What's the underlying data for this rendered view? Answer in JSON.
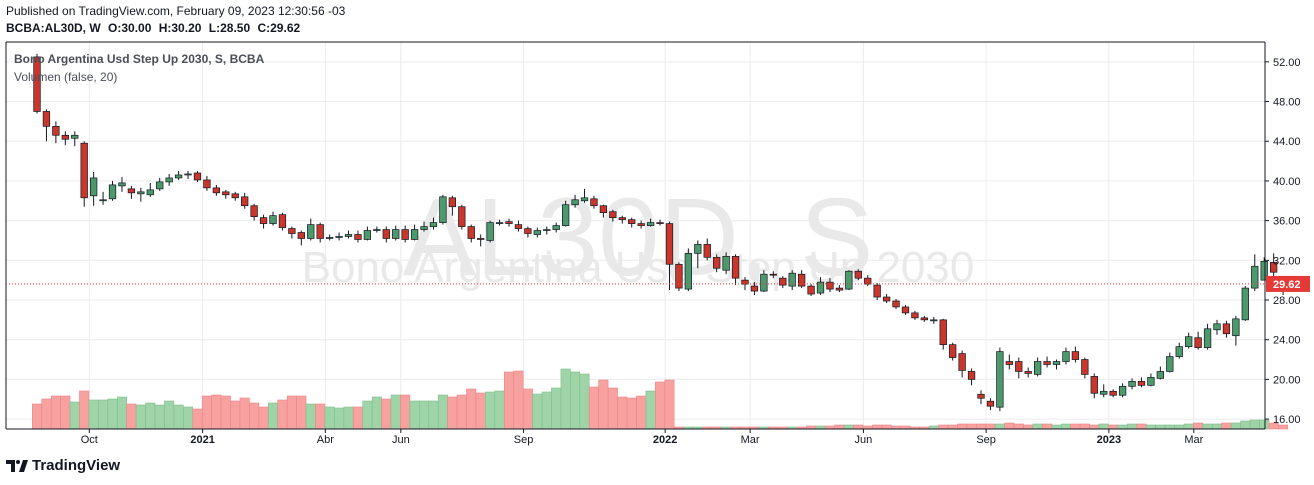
{
  "header": {
    "published": "Published on TradingView.com, February 09, 2023 12:30:56 -03",
    "symbol_interval": "BCBA:AL30D, W",
    "ohlc": {
      "o": "O:30.00",
      "h": "H:30.20",
      "l": "L:28.50",
      "c": "C:29.62"
    }
  },
  "legend": {
    "series": "Bono Argentina Usd Step Up 2030, S, BCBA",
    "indicator": "Volumen (false, 20)"
  },
  "watermark": {
    "ticker": "AL30D, S",
    "name": "Bono Argentina Usd Step Up 2030"
  },
  "footer": {
    "brand": "TradingView",
    "logo_icon": "tradingview-logo-icon"
  },
  "colors": {
    "up": "#26a69a",
    "up_body": "#4c9a6c",
    "down": "#c9372c",
    "vol_up": "#9fd3a8",
    "vol_down": "#f7a1a0",
    "last_price": "#e53935"
  },
  "chart_data": {
    "type": "candlestick",
    "price_axis": {
      "ticks": [
        "52.00",
        "48.00",
        "44.00",
        "40.00",
        "36.00",
        "32.00",
        "28.00",
        "24.00",
        "20.00",
        "16.00"
      ],
      "ylim": [
        15.0,
        54.0
      ]
    },
    "time_axis": {
      "labels": [
        "Oct",
        "2021",
        "Abr",
        "Jun",
        "Sep",
        "2022",
        "Mar",
        "Jun",
        "Sep",
        "2023",
        "Mar"
      ]
    },
    "last_price": {
      "value": 29.62,
      "label": "29.62"
    },
    "grid": true,
    "candles": [
      [
        52.5,
        47.0,
        52.8,
        46.8,
        25
      ],
      [
        47.0,
        45.5,
        47.2,
        44.0,
        30
      ],
      [
        45.5,
        44.6,
        46.0,
        43.8,
        33
      ],
      [
        44.6,
        44.2,
        45.0,
        43.6,
        33
      ],
      [
        44.3,
        44.6,
        45.0,
        43.5,
        27
      ],
      [
        43.8,
        38.3,
        44.0,
        37.4,
        38
      ],
      [
        38.5,
        40.3,
        40.9,
        37.5,
        29
      ],
      [
        38.0,
        38.1,
        38.9,
        37.6,
        29
      ],
      [
        38.2,
        39.6,
        40.0,
        38.0,
        30
      ],
      [
        39.5,
        39.8,
        40.4,
        38.9,
        32
      ],
      [
        39.2,
        38.8,
        39.5,
        38.2,
        25
      ],
      [
        38.7,
        38.9,
        39.3,
        37.9,
        24
      ],
      [
        38.6,
        39.1,
        39.8,
        38.4,
        26
      ],
      [
        39.2,
        39.9,
        40.3,
        39.0,
        24
      ],
      [
        39.9,
        40.3,
        40.7,
        39.5,
        28
      ],
      [
        40.3,
        40.6,
        41.0,
        40.1,
        24
      ],
      [
        40.6,
        40.7,
        41.0,
        40.2,
        22
      ],
      [
        40.8,
        40.1,
        41.0,
        39.9,
        20
      ],
      [
        40.1,
        39.3,
        40.5,
        39.0,
        33
      ],
      [
        39.3,
        38.8,
        39.6,
        38.5,
        34
      ],
      [
        38.9,
        38.6,
        39.1,
        38.2,
        33
      ],
      [
        38.7,
        38.3,
        38.9,
        38.0,
        28
      ],
      [
        38.4,
        37.5,
        38.8,
        37.2,
        31
      ],
      [
        37.5,
        36.4,
        37.7,
        36.0,
        26
      ],
      [
        36.3,
        35.7,
        36.6,
        35.2,
        22
      ],
      [
        35.7,
        36.5,
        36.9,
        35.5,
        26
      ],
      [
        36.6,
        35.3,
        36.8,
        35.0,
        29
      ],
      [
        35.2,
        34.7,
        35.4,
        34.2,
        33
      ],
      [
        34.8,
        34.2,
        35.0,
        33.5,
        33
      ],
      [
        34.2,
        35.6,
        36.2,
        34.0,
        25
      ],
      [
        35.6,
        34.2,
        35.8,
        33.8,
        25
      ],
      [
        34.3,
        34.3,
        34.6,
        34.0,
        22
      ],
      [
        34.3,
        34.4,
        34.8,
        34.0,
        21
      ],
      [
        34.4,
        34.6,
        35.0,
        34.2,
        22
      ],
      [
        34.6,
        34.1,
        35.0,
        33.8,
        22
      ],
      [
        34.1,
        35.0,
        35.4,
        34.0,
        28
      ],
      [
        35.0,
        35.1,
        35.4,
        34.8,
        32
      ],
      [
        35.1,
        34.2,
        35.4,
        33.8,
        30
      ],
      [
        34.2,
        35.1,
        35.5,
        34.0,
        34
      ],
      [
        35.1,
        34.1,
        35.5,
        33.8,
        34
      ],
      [
        34.1,
        35.1,
        35.6,
        34.0,
        28
      ],
      [
        35.1,
        35.4,
        35.9,
        34.9,
        28
      ],
      [
        35.4,
        35.8,
        36.3,
        35.1,
        28
      ],
      [
        35.8,
        38.4,
        38.6,
        35.6,
        34
      ],
      [
        38.3,
        37.4,
        38.5,
        36.5,
        32
      ],
      [
        37.4,
        35.4,
        37.6,
        35.1,
        34
      ],
      [
        35.4,
        34.2,
        35.6,
        33.8,
        40
      ],
      [
        34.2,
        34.1,
        34.6,
        33.4,
        36
      ],
      [
        34.0,
        35.8,
        36.0,
        33.8,
        37
      ],
      [
        35.8,
        35.8,
        36.1,
        35.5,
        38
      ],
      [
        35.9,
        35.7,
        36.2,
        35.4,
        57
      ],
      [
        35.6,
        35.2,
        36.0,
        34.9,
        58
      ],
      [
        35.2,
        34.7,
        35.4,
        34.3,
        40
      ],
      [
        34.6,
        35.0,
        35.3,
        34.3,
        35
      ],
      [
        35.0,
        35.1,
        35.4,
        34.6,
        37
      ],
      [
        35.1,
        35.5,
        35.8,
        34.8,
        41
      ],
      [
        35.5,
        37.6,
        38.0,
        35.4,
        60
      ],
      [
        37.6,
        38.1,
        38.6,
        37.3,
        57
      ],
      [
        38.0,
        38.3,
        39.2,
        37.8,
        55
      ],
      [
        38.2,
        37.5,
        38.5,
        37.2,
        42
      ],
      [
        37.5,
        36.8,
        37.6,
        36.3,
        49
      ],
      [
        36.9,
        36.3,
        37.1,
        35.9,
        41
      ],
      [
        36.3,
        36.1,
        36.5,
        35.7,
        32
      ],
      [
        36.1,
        35.7,
        36.3,
        35.3,
        31
      ],
      [
        35.7,
        35.5,
        36.0,
        35.2,
        33
      ],
      [
        35.5,
        35.8,
        36.2,
        35.4,
        38
      ],
      [
        35.8,
        35.7,
        36.1,
        35.5,
        47
      ],
      [
        35.7,
        31.6,
        35.9,
        29.0,
        49
      ],
      [
        31.6,
        29.2,
        31.8,
        28.9,
        2
      ],
      [
        29.1,
        32.7,
        33.2,
        28.9,
        2
      ],
      [
        32.7,
        33.6,
        34.0,
        31.2,
        2
      ],
      [
        33.6,
        32.3,
        34.2,
        32.0,
        2
      ],
      [
        32.3,
        31.2,
        32.6,
        30.8,
        2
      ],
      [
        31.0,
        32.4,
        32.8,
        30.6,
        2
      ],
      [
        32.4,
        30.2,
        32.6,
        29.5,
        2
      ],
      [
        30.0,
        29.6,
        30.3,
        29.0,
        2
      ],
      [
        29.4,
        28.9,
        29.8,
        28.5,
        2
      ],
      [
        28.9,
        30.6,
        31.0,
        28.8,
        2
      ],
      [
        30.6,
        30.5,
        30.9,
        30.2,
        2
      ],
      [
        30.2,
        29.5,
        30.4,
        29.2,
        2
      ],
      [
        29.4,
        30.7,
        31.0,
        29.0,
        2
      ],
      [
        30.6,
        29.4,
        31.0,
        29.2,
        2
      ],
      [
        29.4,
        28.6,
        29.6,
        28.4,
        3
      ],
      [
        28.7,
        29.8,
        30.3,
        28.5,
        3
      ],
      [
        29.8,
        29.1,
        30.2,
        28.8,
        3
      ],
      [
        29.2,
        29.0,
        29.5,
        28.8,
        4
      ],
      [
        29.1,
        30.9,
        31.0,
        29.0,
        4
      ],
      [
        30.9,
        30.2,
        31.1,
        30.0,
        4
      ],
      [
        30.2,
        29.6,
        30.5,
        29.4,
        3
      ],
      [
        29.5,
        28.3,
        29.7,
        28.0,
        4
      ],
      [
        28.3,
        27.9,
        28.6,
        27.7,
        4
      ],
      [
        27.9,
        27.3,
        28.1,
        27.1,
        3
      ],
      [
        27.3,
        26.7,
        27.5,
        26.5,
        3
      ],
      [
        26.7,
        26.2,
        26.9,
        26.0,
        2
      ],
      [
        26.2,
        26.0,
        26.4,
        25.8,
        2
      ],
      [
        26.0,
        26.0,
        26.3,
        25.6,
        3
      ],
      [
        26.0,
        23.5,
        26.1,
        23.0,
        4
      ],
      [
        23.5,
        22.2,
        23.7,
        21.9,
        4
      ],
      [
        22.6,
        20.9,
        22.9,
        20.2,
        5
      ],
      [
        20.8,
        20.0,
        21.1,
        19.4,
        5
      ],
      [
        18.5,
        18.1,
        18.9,
        17.5,
        5
      ],
      [
        17.8,
        17.3,
        18.1,
        16.9,
        5
      ],
      [
        17.2,
        22.8,
        23.2,
        16.8,
        5
      ],
      [
        21.8,
        21.5,
        22.5,
        21.0,
        6
      ],
      [
        21.8,
        20.8,
        22.2,
        20.1,
        5
      ],
      [
        20.8,
        20.6,
        21.2,
        20.2,
        4
      ],
      [
        20.5,
        21.8,
        22.2,
        20.3,
        5
      ],
      [
        21.8,
        21.5,
        22.3,
        21.2,
        5
      ],
      [
        21.5,
        21.8,
        22.0,
        21.0,
        4
      ],
      [
        21.8,
        22.8,
        23.2,
        21.5,
        5
      ],
      [
        22.8,
        22.0,
        23.3,
        21.7,
        5
      ],
      [
        22.0,
        20.5,
        22.2,
        20.1,
        5
      ],
      [
        20.3,
        18.6,
        20.6,
        18.1,
        4
      ],
      [
        18.5,
        18.8,
        19.5,
        18.2,
        5
      ],
      [
        18.8,
        18.4,
        19.0,
        18.2,
        4
      ],
      [
        18.4,
        19.3,
        19.6,
        18.2,
        4
      ],
      [
        19.3,
        19.8,
        20.1,
        19.0,
        5
      ],
      [
        19.8,
        19.4,
        20.2,
        19.2,
        5
      ],
      [
        19.4,
        20.2,
        20.6,
        19.3,
        4
      ],
      [
        20.1,
        20.8,
        21.3,
        20.0,
        4
      ],
      [
        20.8,
        22.3,
        22.7,
        20.7,
        4
      ],
      [
        22.3,
        23.3,
        23.7,
        22.1,
        4
      ],
      [
        23.3,
        24.3,
        24.7,
        23.1,
        5
      ],
      [
        24.2,
        23.2,
        24.8,
        23.0,
        6
      ],
      [
        23.2,
        25.1,
        25.6,
        23.0,
        5
      ],
      [
        25.0,
        25.6,
        26.0,
        24.5,
        5
      ],
      [
        25.6,
        24.6,
        25.9,
        24.2,
        6
      ],
      [
        24.4,
        26.1,
        26.4,
        23.4,
        6
      ],
      [
        26.0,
        29.2,
        29.4,
        25.9,
        8
      ],
      [
        29.2,
        31.4,
        32.6,
        28.9,
        9
      ],
      [
        30.0,
        31.9,
        32.3,
        30.0,
        9
      ],
      [
        31.8,
        30.8,
        32.7,
        30.3,
        6
      ],
      [
        30.0,
        29.6,
        30.2,
        28.5,
        4
      ]
    ]
  }
}
